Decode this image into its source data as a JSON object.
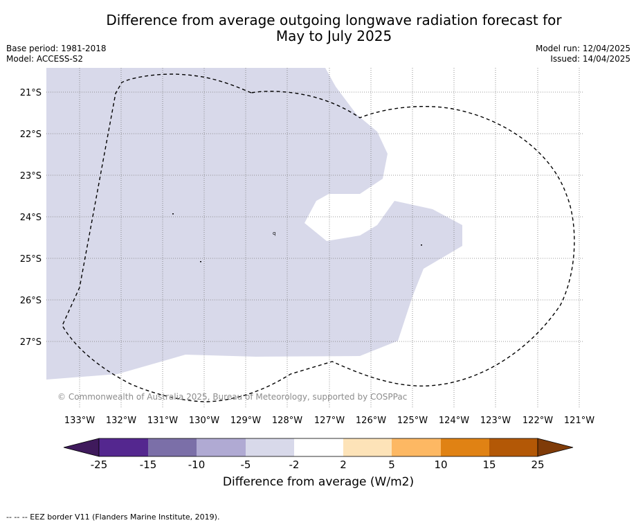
{
  "title_line1": "Difference from average outgoing longwave radiation forecast for",
  "title_line2": "May to July 2025",
  "base_period": "Base period: 1981-2018",
  "model": "Model: ACCESS-S2",
  "model_run": "Model run: 12/04/2025",
  "issued": "Issued: 14/04/2025",
  "lat_labels": [
    "21°S",
    "22°S",
    "23°S",
    "24°S",
    "25°S",
    "26°S",
    "27°S"
  ],
  "lon_labels": [
    "133°W",
    "132°W",
    "131°W",
    "130°W",
    "129°W",
    "128°W",
    "127°W",
    "126°W",
    "125°W",
    "124°W",
    "123°W",
    "122°W",
    "121°W"
  ],
  "copyright": "© Commonwealth of Australia 2025, Bureau of Meteorology, supported by COSPPac",
  "colorbar": {
    "ticks": [
      "-25",
      "-15",
      "-10",
      "-5",
      "-2",
      "2",
      "5",
      "10",
      "15",
      "25"
    ],
    "colors": [
      "#3f1a5c",
      "#54278f",
      "#7b6fa8",
      "#b0aad3",
      "#d8d9ea",
      "#ffffff",
      "#fde3b8",
      "#fdb863",
      "#e08214",
      "#b35806",
      "#7f3b08"
    ],
    "label": "Difference from average (W/m2)"
  },
  "footnote": "-- -- -- EEZ border V11 (Flanders Marine Institute, 2019)."
}
